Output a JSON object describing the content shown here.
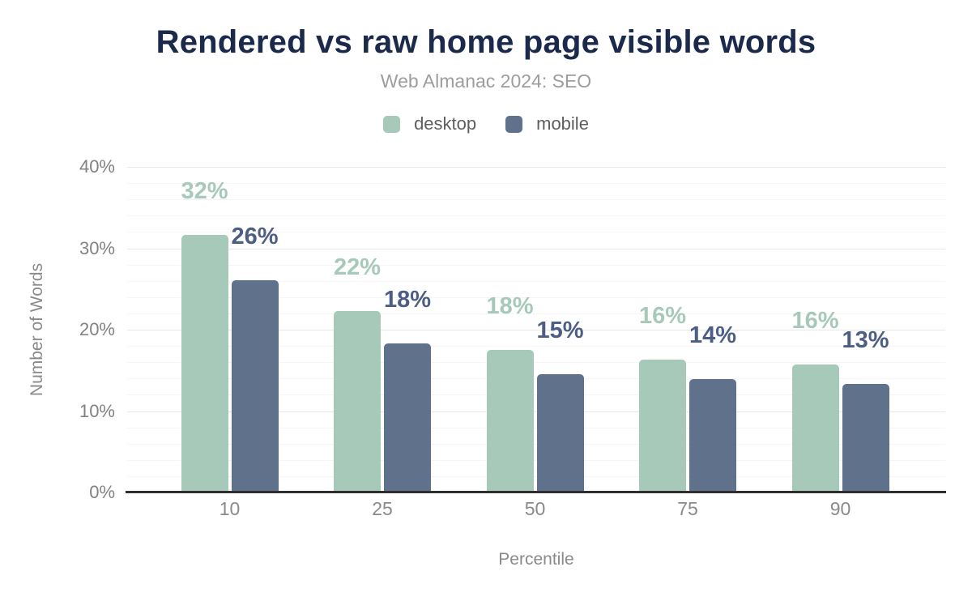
{
  "title": "Rendered vs raw home page visible words",
  "subtitle": "Web Almanac 2024: SEO",
  "legend": {
    "items": [
      {
        "label": "desktop",
        "color": "#a6c9ba"
      },
      {
        "label": "mobile",
        "color": "#60718c"
      }
    ]
  },
  "colors": {
    "title": "#1b2a4b",
    "subtitle": "#9d9d9d",
    "desktop_bar": "#a6c9ba",
    "mobile_bar": "#60718c",
    "desktop_label": "#a6c9ba",
    "mobile_label": "#4d5e84",
    "tick_text": "#828282",
    "axis_line": "#2f2f31",
    "gridline_minor": "#f5f5f5",
    "gridline_major": "#e8e8e8",
    "background": "#ffffff"
  },
  "chart_data": {
    "type": "bar",
    "title": "Rendered vs raw home page visible words",
    "subtitle": "Web Almanac 2024: SEO",
    "xlabel": "Percentile",
    "ylabel": "Number of Words",
    "categories": [
      "10",
      "25",
      "50",
      "75",
      "90"
    ],
    "series": [
      {
        "name": "desktop",
        "color": "#a6c9ba",
        "label_color": "#a6c9ba",
        "values": [
          31.6,
          22.3,
          17.5,
          16.3,
          15.7
        ],
        "labels": [
          "32%",
          "22%",
          "18%",
          "16%",
          "16%"
        ]
      },
      {
        "name": "mobile",
        "color": "#60718c",
        "label_color": "#4d5e84",
        "values": [
          26.1,
          18.3,
          14.5,
          13.9,
          13.3
        ],
        "labels": [
          "26%",
          "18%",
          "15%",
          "14%",
          "13%"
        ]
      }
    ],
    "ylim": [
      0,
      40
    ],
    "yticks": [
      "0%",
      "10%",
      "20%",
      "30%",
      "40%"
    ],
    "ytick_step_major": 10,
    "ytick_step_minor": 2,
    "grid": true,
    "legend_position": "top"
  }
}
